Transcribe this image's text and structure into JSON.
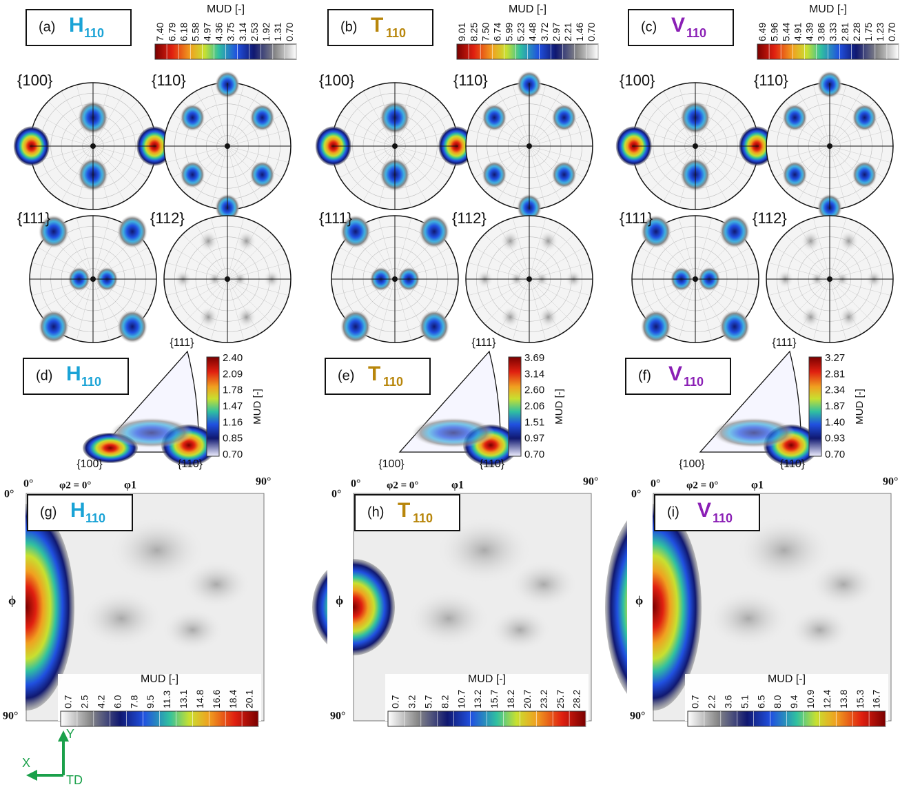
{
  "pole_figures": [
    {
      "label": "(a)",
      "phase": "H",
      "sub": "110",
      "colorbar": {
        "title": "MUD [-]",
        "ticks": [
          "7.40",
          "6.79",
          "6.18",
          "5.58",
          "4.97",
          "4.36",
          "3.75",
          "3.14",
          "2.53",
          "1.92",
          "1.31",
          "0.70"
        ]
      },
      "poles": [
        "{100}",
        "{110}",
        "{111}",
        "{112}"
      ]
    },
    {
      "label": "(b)",
      "phase": "T",
      "sub": "110",
      "colorbar": {
        "title": "MUD [-]",
        "ticks": [
          "9.01",
          "8.25",
          "7.50",
          "6.74",
          "5.99",
          "5.23",
          "4.48",
          "3.72",
          "2.97",
          "2.21",
          "1.46",
          "0.70"
        ]
      },
      "poles": [
        "{100}",
        "{110}",
        "{111}",
        "{112}"
      ]
    },
    {
      "label": "(c)",
      "phase": "V",
      "sub": "110",
      "colorbar": {
        "title": "MUD [-]",
        "ticks": [
          "6.49",
          "5.96",
          "5.44",
          "4.91",
          "4.39",
          "3.86",
          "3.33",
          "2.81",
          "2.28",
          "1.75",
          "1.23",
          "0.70"
        ]
      },
      "poles": [
        "{100}",
        "{110}",
        "{111}",
        "{112}"
      ]
    }
  ],
  "inverse_pole_figures": [
    {
      "label": "(d)",
      "phase": "H",
      "sub": "110",
      "colorbar": {
        "title": "MUD [-]",
        "ticks": [
          "2.40",
          "2.09",
          "1.78",
          "1.47",
          "1.16",
          "0.85",
          "0.70"
        ]
      },
      "corners": [
        "{111}",
        "{100}",
        "{110}"
      ]
    },
    {
      "label": "(e)",
      "phase": "T",
      "sub": "110",
      "colorbar": {
        "title": "MUD [-]",
        "ticks": [
          "3.69",
          "3.14",
          "2.60",
          "2.06",
          "1.51",
          "0.97",
          "0.70"
        ]
      },
      "corners": [
        "{111}",
        "{100}",
        "{110}"
      ]
    },
    {
      "label": "(f)",
      "phase": "V",
      "sub": "110",
      "colorbar": {
        "title": "MUD [-]",
        "ticks": [
          "3.27",
          "2.81",
          "2.34",
          "1.87",
          "1.40",
          "0.93",
          "0.70"
        ]
      },
      "corners": [
        "{111}",
        "{100}",
        "{110}"
      ]
    }
  ],
  "odf_sections": [
    {
      "label": "(g)",
      "phase": "H",
      "sub": "110",
      "axes": {
        "origin": "0°",
        "phi2": "φ2 = 0°",
        "phi1": "φ1",
        "right": "90°",
        "left_top": "0°",
        "phi": "ϕ",
        "bottom": "90°"
      },
      "colorbar": {
        "title": "MUD [-]",
        "ticks": [
          "0.7",
          "2.5",
          "4.2",
          "6.0",
          "7.8",
          "9.5",
          "11.3",
          "13.1",
          "14.8",
          "16.6",
          "18.4",
          "20.1"
        ]
      }
    },
    {
      "label": "(h)",
      "phase": "T",
      "sub": "110",
      "axes": {
        "origin": "0°",
        "phi2": "φ2 = 0°",
        "phi1": "φ1",
        "right": "90°",
        "left_top": "0°",
        "phi": "ϕ",
        "bottom": "90°"
      },
      "colorbar": {
        "title": "MUD [-]",
        "ticks": [
          "0.7",
          "3.2",
          "5.7",
          "8.2",
          "10.7",
          "13.2",
          "15.7",
          "18.2",
          "20.7",
          "23.2",
          "25.7",
          "28.2"
        ]
      }
    },
    {
      "label": "(i)",
      "phase": "V",
      "sub": "110",
      "axes": {
        "origin": "0°",
        "phi2": "φ2 = 0°",
        "phi1": "φ1",
        "right": "90°",
        "left_top": "0°",
        "phi": "ϕ",
        "bottom": "90°"
      },
      "colorbar": {
        "title": "MUD [-]",
        "ticks": [
          "0.7",
          "2.2",
          "3.6",
          "5.1",
          "6.5",
          "8.0",
          "9.4",
          "10.9",
          "12.4",
          "13.8",
          "15.3",
          "16.7"
        ]
      }
    }
  ],
  "axes_legend": {
    "y": "Y",
    "x": "X",
    "td": "TD"
  }
}
